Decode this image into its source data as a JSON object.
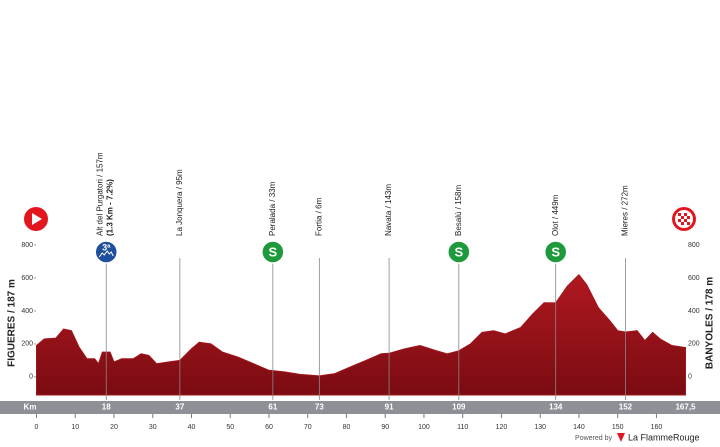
{
  "chart_data": {
    "type": "area",
    "start_label": "FIGUERES / 187 m",
    "finish_label": "BANYOLES / 178 m",
    "km_label": "Km",
    "x": [
      0,
      2,
      5,
      7,
      9,
      11,
      13,
      15,
      16,
      17,
      19,
      20,
      22,
      25,
      27,
      29,
      31,
      34,
      37,
      40,
      42,
      45,
      48,
      52,
      56,
      60,
      64,
      68,
      73,
      77,
      81,
      85,
      89,
      91,
      95,
      99,
      103,
      106,
      109,
      112,
      115,
      118,
      121,
      125,
      128,
      131,
      134,
      137,
      140,
      142,
      145,
      148,
      150,
      152,
      155,
      157,
      159,
      161,
      164,
      167.5
    ],
    "elevation": [
      190,
      230,
      235,
      290,
      280,
      180,
      110,
      110,
      80,
      150,
      150,
      90,
      110,
      110,
      140,
      130,
      80,
      90,
      100,
      170,
      210,
      200,
      150,
      120,
      80,
      40,
      30,
      15,
      6,
      20,
      60,
      100,
      140,
      143,
      170,
      190,
      160,
      140,
      158,
      200,
      270,
      280,
      260,
      300,
      380,
      450,
      449,
      550,
      620,
      560,
      420,
      340,
      280,
      272,
      280,
      220,
      270,
      230,
      190,
      178
    ],
    "color": "#a3141c",
    "xlim": [
      0,
      167.5
    ],
    "xticks": [
      0,
      10,
      20,
      30,
      40,
      50,
      60,
      70,
      80,
      90,
      100,
      110,
      120,
      130,
      140,
      150,
      160
    ],
    "ylim": [
      -110,
      800
    ],
    "yticks": [
      0,
      200,
      400,
      600,
      800
    ],
    "km_marks": [
      18,
      37,
      61,
      73,
      91,
      109,
      134,
      152,
      {
        "value": 167.5,
        "label": "167,5"
      }
    ],
    "waypoints": [
      {
        "label": "Alt del Purgatori / 157m",
        "detail": "(1.3 Km - 7.2%)",
        "icon": "3ª"
      },
      {
        "label": "La Jonquera / 95m"
      },
      {
        "label": "Peralada / 33m",
        "icon": "S"
      },
      {
        "label": "Fortia / 6m"
      },
      {
        "label": "Navata / 143m"
      },
      {
        "label": "Besalú / 158m",
        "icon": "S"
      },
      {
        "label": "Olot / 449m",
        "icon": "S"
      },
      {
        "label": "Mieres / 272m"
      }
    ],
    "footer": {
      "powered": "Powered by",
      "brand": "La FlammeRouge"
    }
  }
}
